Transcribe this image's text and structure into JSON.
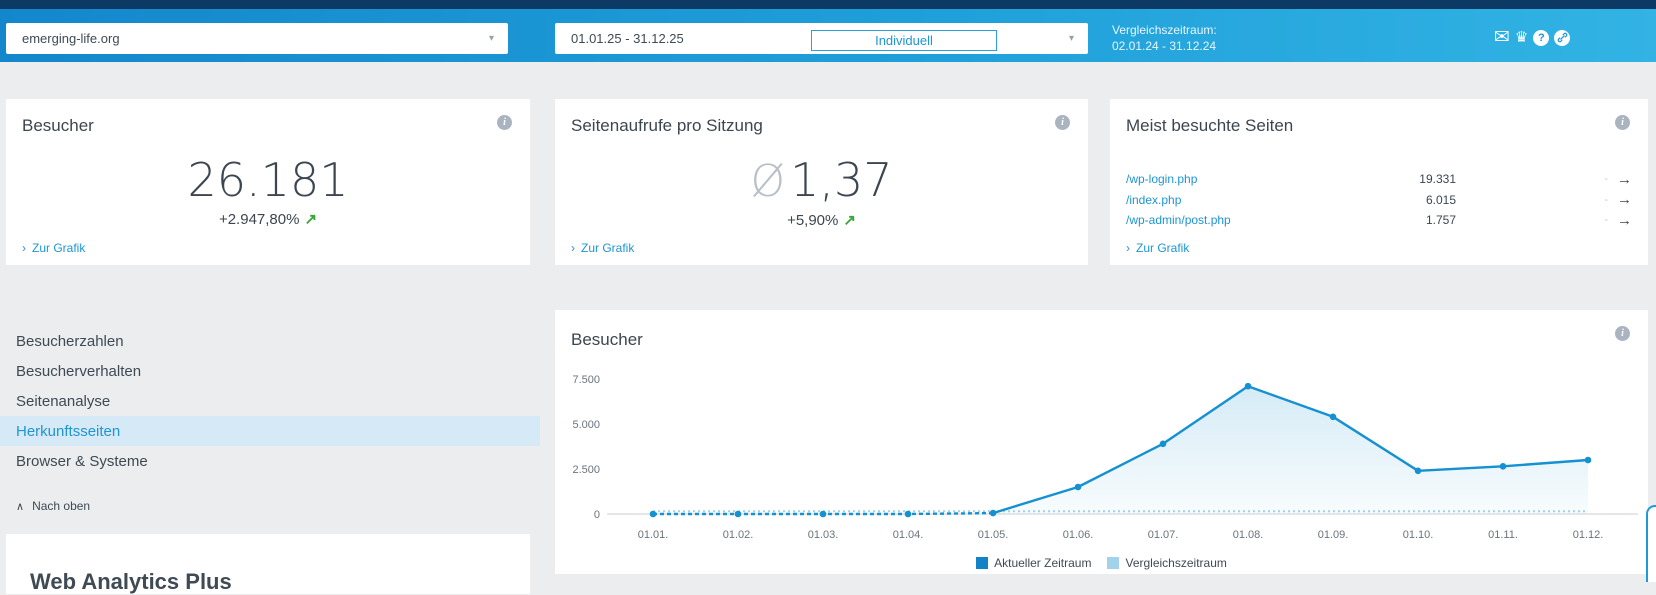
{
  "topbar": {
    "domain_selector": {
      "value": "emerging-life.org"
    },
    "date_range": {
      "value": "01.01.25 - 31.12.25",
      "mode": "Individuell"
    },
    "comparison": {
      "label": "Vergleichszeitraum:",
      "value": "02.01.24 - 31.12.24"
    }
  },
  "icons": {
    "mail": "✉",
    "crown": "♛",
    "question": "?",
    "info": "i",
    "caret": "▾",
    "chevron_right": "›",
    "trend_up": "↗",
    "arrow_right": "→",
    "dash": "-",
    "chevron_up": "∧"
  },
  "cards": {
    "visitors": {
      "title": "Besucher",
      "value": "26.181",
      "delta": "+2.947,80%",
      "link": "Zur Grafik"
    },
    "pages_per_session": {
      "title": "Seitenaufrufe pro Sitzung",
      "avg_symbol": "Ø",
      "value": "1,37",
      "delta": "+5,90%",
      "link": "Zur Grafik"
    },
    "top_pages": {
      "title": "Meist besuchte Seiten",
      "rows": [
        {
          "path": "/wp-login.php",
          "value": "19.331"
        },
        {
          "path": "/index.php",
          "value": "6.015"
        },
        {
          "path": "/wp-admin/post.php",
          "value": "1.757"
        }
      ],
      "link": "Zur Grafik"
    }
  },
  "sidebar": {
    "items": [
      {
        "label": "Besucherzahlen",
        "active": false
      },
      {
        "label": "Besucherverhalten",
        "active": false
      },
      {
        "label": "Seitenanalyse",
        "active": false
      },
      {
        "label": "Herkunftsseiten",
        "active": true
      },
      {
        "label": "Browser & Systeme",
        "active": false
      }
    ],
    "back_to_top": "Nach oben"
  },
  "chart_data": {
    "type": "area",
    "title": "Besucher",
    "x": [
      "01.01.",
      "01.02.",
      "01.03.",
      "01.04.",
      "01.05.",
      "01.06.",
      "01.07.",
      "01.08.",
      "01.09.",
      "01.10.",
      "01.11.",
      "01.12."
    ],
    "ylim": [
      0,
      7500
    ],
    "yticks": [
      {
        "label": "7.500",
        "value": 7500
      },
      {
        "label": "5.000",
        "value": 5000
      },
      {
        "label": "2.500",
        "value": 2500
      },
      {
        "label": "0",
        "value": 0
      }
    ],
    "grid": false,
    "legend_position": "bottom-center",
    "series": [
      {
        "name": "Aktueller Zeitraum",
        "color": "#1590d0",
        "legend_color": "#1283c6",
        "style": "solid-with-dashed-start",
        "values": [
          0,
          0,
          0,
          0,
          50,
          1500,
          3900,
          7100,
          5400,
          2400,
          2650,
          3000
        ]
      },
      {
        "name": "Vergleichszeitraum",
        "color": "#9fd3ea",
        "legend_color": "#a3d3ea",
        "style": "dotted",
        "values": [
          150,
          150,
          150,
          150,
          150,
          150,
          150,
          150,
          150,
          150,
          150,
          150
        ]
      }
    ]
  },
  "bottom": {
    "heading": "Web Analytics Plus"
  },
  "colors": {
    "accent": "#1e95d4",
    "positive": "#3da639",
    "topbar_start": "#1487cc",
    "topbar_end": "#32b3e4",
    "nav_highlight": "#d6e9f6"
  }
}
